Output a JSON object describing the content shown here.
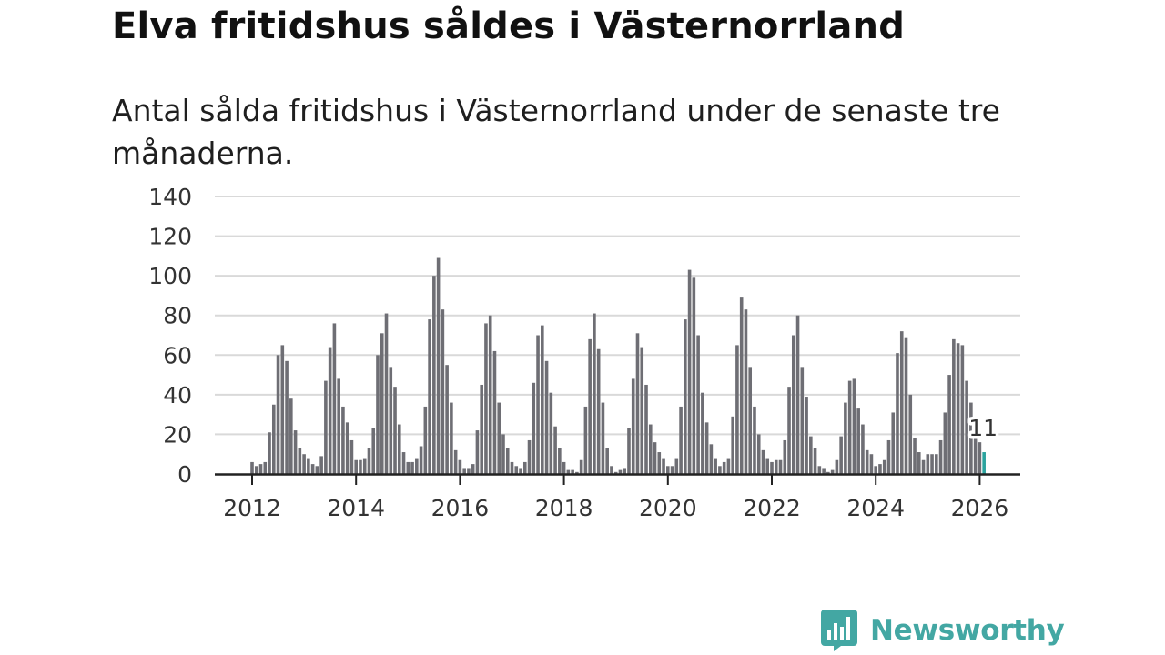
{
  "chart_data": {
    "type": "bar",
    "title": "Elva fritidshus såldes i Västernorrland",
    "subtitle": "Antal sålda fritidshus i Västernorrland under de senaste tre månaderna.",
    "xlabel": "",
    "ylabel": "",
    "x_start": "2012-01",
    "x_ticks": [
      "2012",
      "2014",
      "2016",
      "2018",
      "2020",
      "2022",
      "2024",
      "2026"
    ],
    "y_ticks": [
      0,
      20,
      40,
      60,
      80,
      100,
      120,
      140
    ],
    "ylim": [
      0,
      140
    ],
    "grid": true,
    "legend": "none",
    "values": [
      6,
      4,
      5,
      6,
      21,
      35,
      60,
      65,
      57,
      38,
      22,
      13,
      10,
      8,
      5,
      4,
      9,
      47,
      64,
      76,
      48,
      34,
      26,
      17,
      7,
      7,
      8,
      13,
      23,
      60,
      71,
      81,
      54,
      44,
      25,
      11,
      6,
      6,
      8,
      14,
      34,
      78,
      100,
      109,
      83,
      55,
      36,
      12,
      7,
      3,
      3,
      5,
      22,
      45,
      76,
      80,
      62,
      36,
      20,
      13,
      6,
      4,
      3,
      6,
      17,
      46,
      70,
      75,
      57,
      41,
      24,
      13,
      6,
      2,
      2,
      1,
      7,
      34,
      68,
      81,
      63,
      36,
      13,
      4,
      1,
      2,
      3,
      23,
      48,
      71,
      64,
      45,
      25,
      16,
      11,
      8,
      4,
      4,
      8,
      34,
      78,
      103,
      99,
      70,
      41,
      26,
      15,
      8,
      4,
      6,
      8,
      29,
      65,
      89,
      83,
      54,
      34,
      20,
      12,
      8,
      6,
      7,
      7,
      17,
      44,
      70,
      80,
      54,
      39,
      19,
      13,
      4,
      3,
      1,
      2,
      7,
      19,
      36,
      47,
      48,
      33,
      25,
      12,
      10,
      4,
      5,
      7,
      17,
      31,
      61,
      72,
      69,
      40,
      18,
      11,
      7,
      10,
      10,
      10,
      17,
      31,
      50,
      68,
      66,
      65,
      47,
      36,
      22,
      16,
      11
    ],
    "highlight_label": "11",
    "colors": {
      "bar": "#6e6e74",
      "highlight": "#2ba39e",
      "grid": "#d9d9d9",
      "axis": "#222222"
    }
  },
  "brand": {
    "name": "Newsworthy",
    "logo_icon": "newsworthy-bar-chart-bubble-icon"
  }
}
